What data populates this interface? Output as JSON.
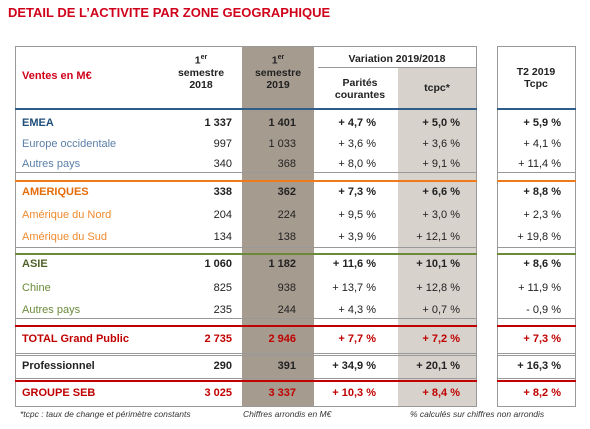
{
  "title": "DETAIL DE L’ACTIVITE PAR ZONE GEOGRAPHIQUE",
  "table": {
    "header": {
      "sales": "Ventes en M€",
      "h2018": {
        "num": "1",
        "sup": "er",
        "line2": "semestre",
        "line3": "2018"
      },
      "h2019": {
        "num": "1",
        "sup": "er",
        "line2": "semestre",
        "line3": "2019"
      },
      "variation": "Variation 2019/2018",
      "parites": "Parités courantes",
      "tcpc": "tcpc*",
      "t2": "T2 2019 Tcpc"
    },
    "groups": [
      {
        "rows": [
          [
            "EMEA",
            "1 337",
            "1 401",
            "+ 4,7 %",
            "+ 5,0 %",
            "+ 5,9 %"
          ],
          [
            "Europe occidentale",
            "997",
            "1 033",
            "+ 3,6 %",
            "+ 3,6 %",
            "+ 4,1 %"
          ],
          [
            "Autres pays",
            "340",
            "368",
            "+ 8,0 %",
            "+ 9,1 %",
            "+ 11,4 %"
          ]
        ]
      },
      {
        "rows": [
          [
            "AMERIQUES",
            "338",
            "362",
            "+ 7,3 %",
            "+ 6,6 %",
            "+ 8,8 %"
          ],
          [
            "Amérique du Nord",
            "204",
            "224",
            "+ 9,5 %",
            "+ 3,0 %",
            "+ 2,3 %"
          ],
          [
            "Amérique du Sud",
            "134",
            "138",
            "+ 3,9 %",
            "+ 12,1 %",
            "+ 19,8 %"
          ]
        ]
      },
      {
        "rows": [
          [
            "ASIE",
            "1 060",
            "1 182",
            "+ 11,6 %",
            "+ 10,1 %",
            "+ 8,6 %"
          ],
          [
            "Chine",
            "825",
            "938",
            "+ 13,7 %",
            "+ 12,8 %",
            "+ 11,9 %"
          ],
          [
            "Autres pays",
            "235",
            "244",
            "+ 4,3 %",
            "+ 0,7 %",
            "- 0,9 %"
          ]
        ]
      },
      {
        "rows": [
          [
            "TOTAL Grand Public",
            "2 735",
            "2 946",
            "+ 7,7 %",
            "+ 7,2 %",
            "+ 7,3 %"
          ]
        ]
      },
      {
        "rows": [
          [
            "Professionnel",
            "290",
            "391",
            "+ 34,9 %",
            "+ 20,1 %",
            "+ 16,3 %"
          ]
        ]
      },
      {
        "rows": [
          [
            "GROUPE SEB",
            "3 025",
            "3 337",
            "+ 10,3 %",
            "+ 8,4 %",
            "+ 8,2 %"
          ]
        ]
      }
    ]
  },
  "footnotes": [
    "*tcpc : taux de change et périmètre constants",
    "Chiffres arrondis en M€",
    "% calculés sur chiffres non arrondis"
  ]
}
